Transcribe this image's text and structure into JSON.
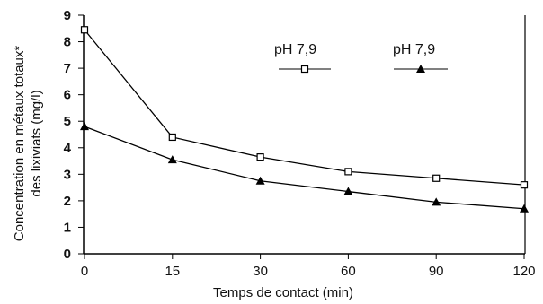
{
  "chart_data": {
    "type": "line",
    "title": "",
    "xlabel": "Temps de contact (min)",
    "ylabel_lines": [
      "Concentration en métaux totaux*",
      "des lixiviats (mg/l)"
    ],
    "categories": [
      "0",
      "15",
      "30",
      "60",
      "90",
      "120"
    ],
    "ylim": [
      0,
      9
    ],
    "y_ticks": [
      "0",
      "1",
      "2",
      "3",
      "4",
      "5",
      "6",
      "7",
      "8",
      "9"
    ],
    "grid": false,
    "legend_position": "top-right",
    "series": [
      {
        "name": "pH 7,9",
        "marker": "open-square",
        "color": "#000000",
        "values": [
          8.45,
          4.4,
          3.65,
          3.1,
          2.85,
          2.6
        ]
      },
      {
        "name": "pH 7,9",
        "marker": "filled-triangle",
        "color": "#000000",
        "values": [
          4.8,
          3.55,
          2.75,
          2.35,
          1.95,
          1.7
        ]
      }
    ]
  }
}
